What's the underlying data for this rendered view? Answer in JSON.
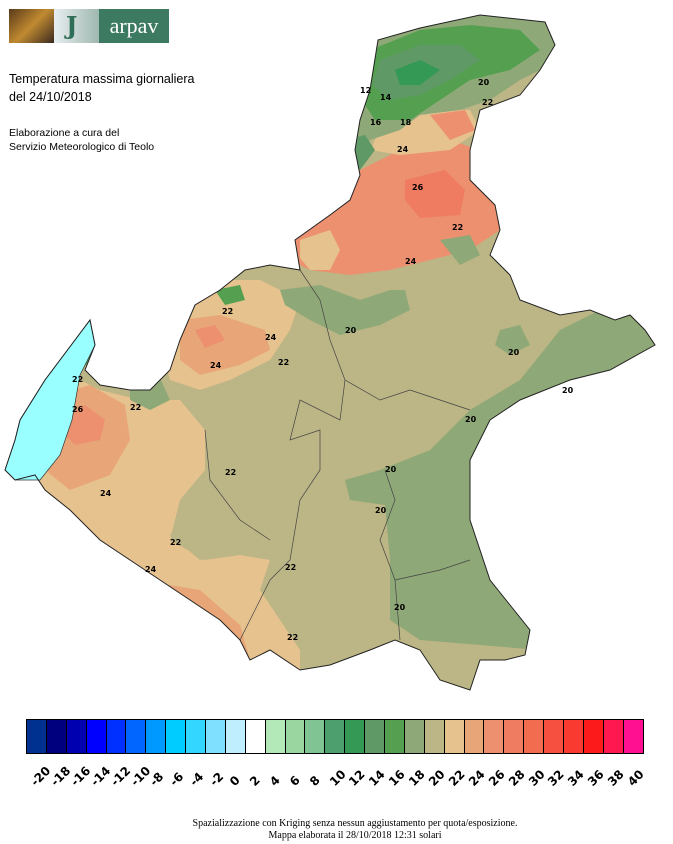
{
  "header": {
    "logo_text": "arpav",
    "title_line1": "Temperatura massima giornaliera",
    "title_line2": "del 24/10/2018",
    "credit_line1": "Elaborazione a cura del",
    "credit_line2": "Servizio Meteorologico di Teolo"
  },
  "map": {
    "region": "Veneto",
    "contour_labels": [
      "12",
      "14",
      "16",
      "18",
      "20",
      "22",
      "24",
      "26",
      "22",
      "24",
      "20",
      "20",
      "20",
      "22",
      "24",
      "26",
      "22",
      "20",
      "24",
      "22",
      "22",
      "22",
      "24",
      "20",
      "22",
      "24",
      "22",
      "20",
      "22",
      "20"
    ]
  },
  "legend": {
    "labels": [
      "-20",
      "-18",
      "-16",
      "-14",
      "-12",
      "-10",
      "-8",
      "-6",
      "-4",
      "-2",
      "0",
      "2",
      "4",
      "6",
      "8",
      "10",
      "12",
      "14",
      "16",
      "18",
      "20",
      "22",
      "24",
      "26",
      "28",
      "30",
      "32",
      "34",
      "36",
      "38",
      "40"
    ],
    "colors": [
      "#003090",
      "#00007f",
      "#0000b0",
      "#0000ff",
      "#0030ff",
      "#0066ff",
      "#0099ff",
      "#00ccff",
      "#33d6ff",
      "#80e0ff",
      "#bfefff",
      "#ffffff",
      "#b3e8b8",
      "#99d6a0",
      "#80c494",
      "#4d9f6e",
      "#339955",
      "#5f9966",
      "#55a050",
      "#8fa877",
      "#bcb585",
      "#e6c28f",
      "#e8a678",
      "#ec9070",
      "#ef7c60",
      "#f26c50",
      "#f55040",
      "#f83a30",
      "#fc1a1a",
      "#ff1850",
      "#ff1090"
    ]
  },
  "footer": {
    "line1": "Spazializzazione con Kriging senza nessun aggiustamento per quota/esposizione.",
    "line2": "Mappa elaborata il 28/10/2018 12:31 solari"
  }
}
